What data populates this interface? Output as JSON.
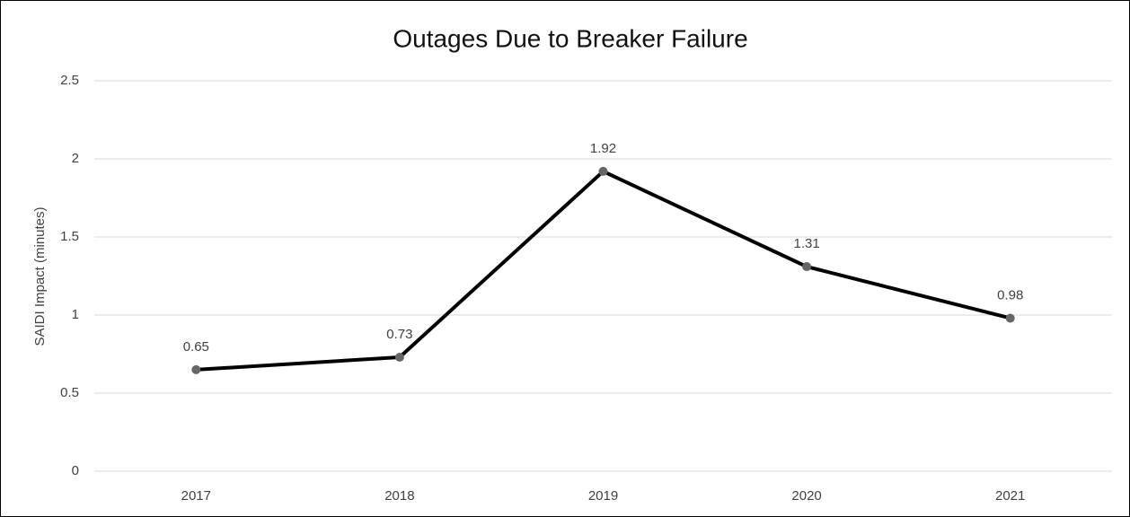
{
  "chart_data": {
    "type": "line",
    "title": "Outages Due to Breaker Failure",
    "y_label": "SAIDI Impact (minutes)",
    "categories": [
      "2017",
      "2018",
      "2019",
      "2020",
      "2021"
    ],
    "values": [
      0.65,
      0.73,
      1.92,
      1.31,
      0.98
    ],
    "color": "#000000",
    "marker_color": "#666666",
    "ylim": [
      0,
      2.5
    ],
    "yticks": [
      0,
      0.5,
      1,
      1.5,
      2,
      2.5
    ],
    "grid": true
  }
}
